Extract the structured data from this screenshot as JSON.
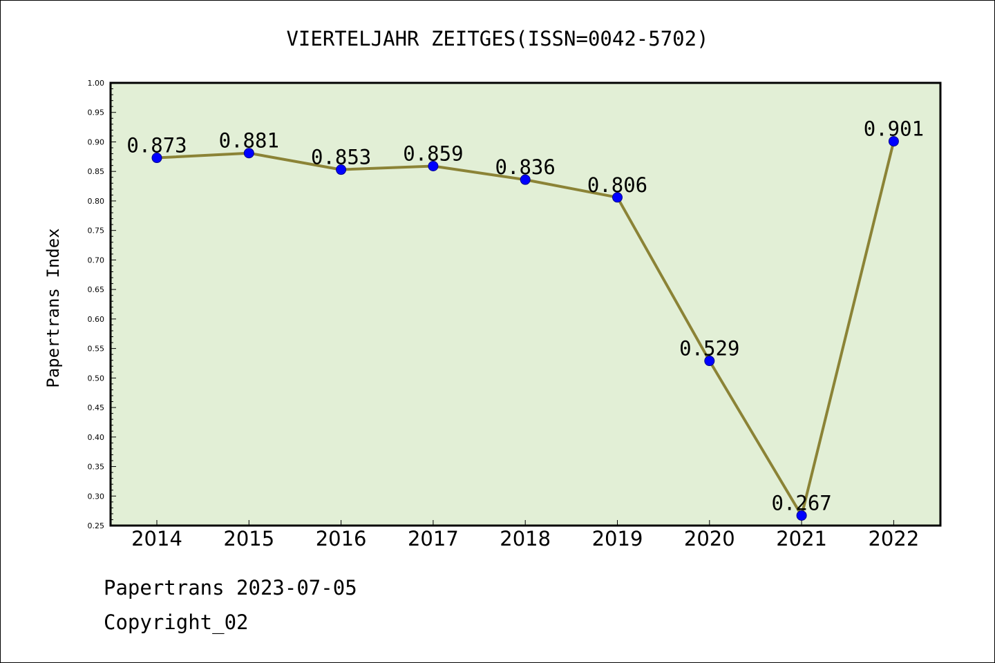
{
  "chart_data": {
    "type": "line",
    "title": "VIERTELJAHR ZEITGES(ISSN=0042-5702)",
    "xlabel": "",
    "ylabel": "Papertrans Index",
    "categories": [
      "2014",
      "2015",
      "2016",
      "2017",
      "2018",
      "2019",
      "2020",
      "2021",
      "2022"
    ],
    "series": [
      {
        "values": [
          0.873,
          0.881,
          0.853,
          0.859,
          0.836,
          0.806,
          0.529,
          0.267,
          0.901
        ]
      }
    ],
    "data_labels": [
      "0.873",
      "0.881",
      "0.853",
      "0.859",
      "0.836",
      "0.806",
      "0.529",
      "0.267",
      "0.901"
    ],
    "ylim": [
      0.25,
      1.0
    ],
    "yticks": [
      "0.25",
      "0.30",
      "0.35",
      "0.40",
      "0.45",
      "0.50",
      "0.55",
      "0.60",
      "0.65",
      "0.70",
      "0.75",
      "0.80",
      "0.85",
      "0.90",
      "0.95",
      "1.00"
    ],
    "grid": false,
    "legend": "none",
    "colors": {
      "plot_background": "#e2efd6",
      "line": "#8b8336",
      "marker": "#0000ff",
      "marker_edge": "#00008b"
    }
  },
  "footer": {
    "line1": "Papertrans 2023-07-05",
    "line2": "Copyright_02"
  }
}
